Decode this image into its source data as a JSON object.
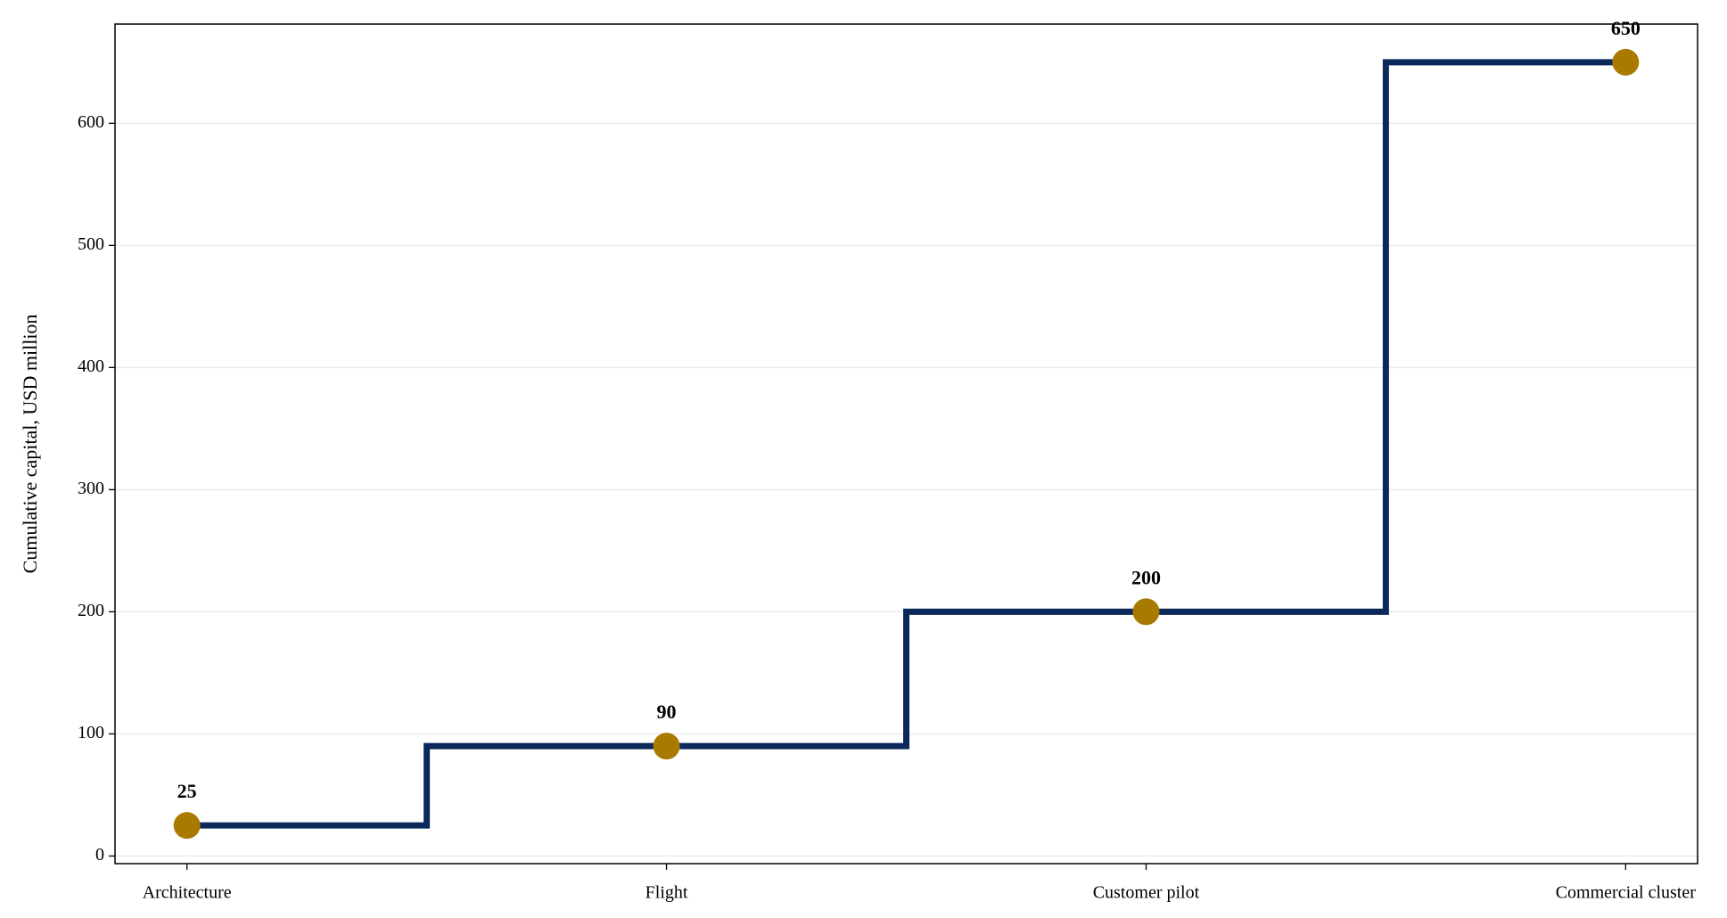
{
  "chart_data": {
    "type": "step",
    "y_label": "Cumulative capital, USD million",
    "categories": [
      "Architecture",
      "Flight",
      "Customer pilot",
      "Commercial cluster"
    ],
    "values": [
      25,
      90,
      200,
      650
    ],
    "line_color": "#0b2a5b",
    "marker_color": "#a87b00",
    "ylim": [
      -6.25,
      681.25
    ],
    "yticks": [
      0,
      100,
      200,
      300,
      400,
      500,
      600
    ],
    "grid": true
  }
}
